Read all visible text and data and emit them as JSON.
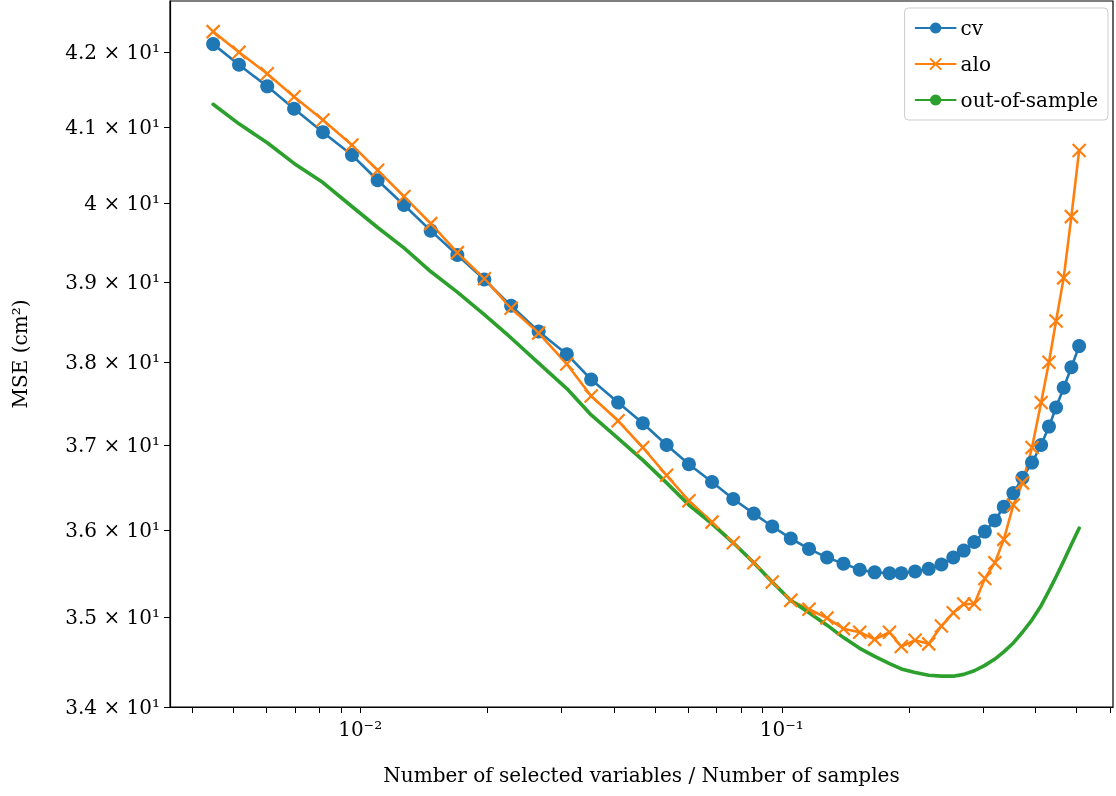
{
  "chart_data": {
    "type": "line",
    "xlabel": "Number of selected variables / Number of samples",
    "ylabel": "MSE (cm²)",
    "log": "xy",
    "grid": false,
    "legend": "top right",
    "line_style": "solid",
    "xlim": [
      0.00354,
      0.61
    ],
    "xticks": [
      {
        "value": 0.004,
        "label": null
      },
      {
        "value": 0.005,
        "label": null
      },
      {
        "value": 0.006,
        "label": null
      },
      {
        "value": 0.007,
        "label": null
      },
      {
        "value": 0.008,
        "label": null
      },
      {
        "value": 0.009,
        "label": null
      },
      {
        "value": 0.01,
        "label": "10⁻²"
      },
      {
        "value": 0.02,
        "label": null
      },
      {
        "value": 0.03,
        "label": null
      },
      {
        "value": 0.04,
        "label": null
      },
      {
        "value": 0.05,
        "label": null
      },
      {
        "value": 0.06,
        "label": null
      },
      {
        "value": 0.07,
        "label": null
      },
      {
        "value": 0.08,
        "label": null
      },
      {
        "value": 0.09,
        "label": null
      },
      {
        "value": 0.1,
        "label": "10⁻¹"
      },
      {
        "value": 0.2,
        "label": null
      },
      {
        "value": 0.3,
        "label": null
      },
      {
        "value": 0.4,
        "label": null
      },
      {
        "value": 0.5,
        "label": null
      },
      {
        "value": 0.6,
        "label": null
      }
    ],
    "ylim": [
      34,
      42.7
    ],
    "yticks": [
      {
        "value": 34,
        "label": "3.4 × 10¹"
      },
      {
        "value": 35,
        "label": "3.5 × 10¹"
      },
      {
        "value": 36,
        "label": "3.6 × 10¹"
      },
      {
        "value": 37,
        "label": "3.7 × 10¹"
      },
      {
        "value": 38,
        "label": "3.8 × 10¹"
      },
      {
        "value": 39,
        "label": "3.9 × 10¹"
      },
      {
        "value": 40,
        "label": "4 × 10¹"
      },
      {
        "value": 41,
        "label": "4.1 × 10¹"
      },
      {
        "value": 42,
        "label": "4.2 × 10¹"
      }
    ],
    "x": [
      0.00448,
      0.00516,
      0.00602,
      0.00697,
      0.00816,
      0.00956,
      0.011,
      0.0127,
      0.0147,
      0.017,
      0.0197,
      0.0228,
      0.0265,
      0.0309,
      0.0353,
      0.0409,
      0.0468,
      0.0533,
      0.0602,
      0.0683,
      0.0767,
      0.0858,
      0.0949,
      0.105,
      0.116,
      0.128,
      0.14,
      0.153,
      0.166,
      0.18,
      0.192,
      0.207,
      0.223,
      0.239,
      0.255,
      0.27,
      0.286,
      0.303,
      0.32,
      0.336,
      0.354,
      0.372,
      0.392,
      0.412,
      0.43,
      0.447,
      0.466,
      0.486,
      0.507
    ],
    "series": [
      {
        "name": "cv",
        "color": "#1f77b4",
        "marker": "circle",
        "values": [
          42.11,
          41.83,
          41.54,
          41.24,
          40.93,
          40.63,
          40.3,
          39.98,
          39.65,
          39.34,
          39.03,
          38.7,
          38.38,
          38.1,
          37.79,
          37.51,
          37.26,
          37.0,
          36.77,
          36.56,
          36.36,
          36.19,
          36.04,
          35.9,
          35.78,
          35.68,
          35.61,
          35.54,
          35.51,
          35.5,
          35.5,
          35.52,
          35.55,
          35.6,
          35.68,
          35.76,
          35.86,
          35.98,
          36.11,
          36.27,
          36.43,
          36.61,
          36.79,
          37.0,
          37.22,
          37.45,
          37.69,
          37.94,
          38.2
        ]
      },
      {
        "name": "alo",
        "color": "#ff7f0e",
        "marker": "cross",
        "values": [
          42.28,
          42.0,
          41.71,
          41.4,
          41.09,
          40.76,
          40.43,
          40.09,
          39.74,
          39.37,
          39.04,
          38.67,
          38.36,
          37.98,
          37.59,
          37.29,
          36.97,
          36.64,
          36.34,
          36.09,
          35.85,
          35.62,
          35.4,
          35.19,
          35.09,
          34.99,
          34.87,
          34.83,
          34.75,
          34.83,
          34.67,
          34.74,
          34.7,
          34.9,
          35.05,
          35.15,
          35.15,
          35.44,
          35.62,
          35.89,
          36.29,
          36.55,
          36.97,
          37.51,
          38.0,
          38.51,
          39.05,
          39.83,
          40.69
        ]
      },
      {
        "name": "out-of-sample",
        "color": "#2ca02c",
        "marker": "none",
        "values": [
          41.3,
          41.04,
          40.79,
          40.52,
          40.27,
          39.96,
          39.69,
          39.43,
          39.13,
          38.87,
          38.59,
          38.3,
          37.99,
          37.68,
          37.36,
          37.08,
          36.82,
          36.55,
          36.29,
          36.07,
          35.85,
          35.62,
          35.4,
          35.19,
          35.05,
          34.91,
          34.77,
          34.65,
          34.56,
          34.48,
          34.42,
          34.38,
          34.35,
          34.34,
          34.34,
          34.36,
          34.4,
          34.46,
          34.53,
          34.61,
          34.71,
          34.83,
          34.97,
          35.13,
          35.3,
          35.46,
          35.64,
          35.83,
          36.02
        ]
      }
    ]
  }
}
